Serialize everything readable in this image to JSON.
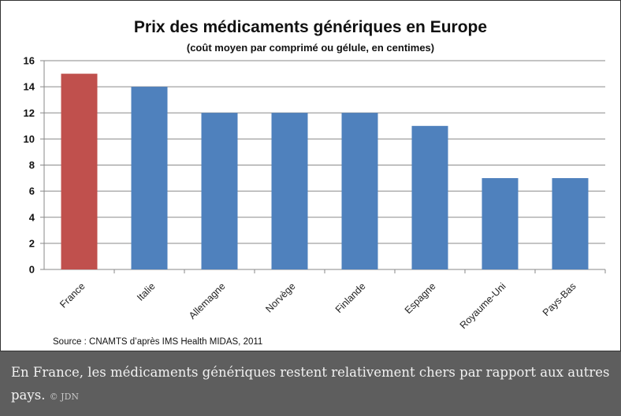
{
  "chart_data": {
    "type": "bar",
    "title": "Prix des médicaments génériques en Europe",
    "subtitle": "(coût moyen par comprimé ou gélule, en centimes)",
    "categories": [
      "France",
      "Italie",
      "Allemagne",
      "Norvège",
      "Finlande",
      "Espagne",
      "Royaume-Uni",
      "Pays-Bas"
    ],
    "values": [
      15,
      14,
      12,
      12,
      12,
      11,
      7,
      7
    ],
    "colors": [
      "#c0504d",
      "#4f81bd",
      "#4f81bd",
      "#4f81bd",
      "#4f81bd",
      "#4f81bd",
      "#4f81bd",
      "#4f81bd"
    ],
    "ylim": [
      0,
      16
    ],
    "yticks": [
      0,
      2,
      4,
      6,
      8,
      10,
      12,
      14,
      16
    ],
    "xlabel": "",
    "ylabel": "",
    "grid": true,
    "source": "Source : CNAMTS d’après IMS Health MIDAS, 2011"
  },
  "caption": {
    "text": "En France, les médicaments génériques restent relativement chers par rapport aux autres pays.",
    "credit": "© JDN"
  }
}
